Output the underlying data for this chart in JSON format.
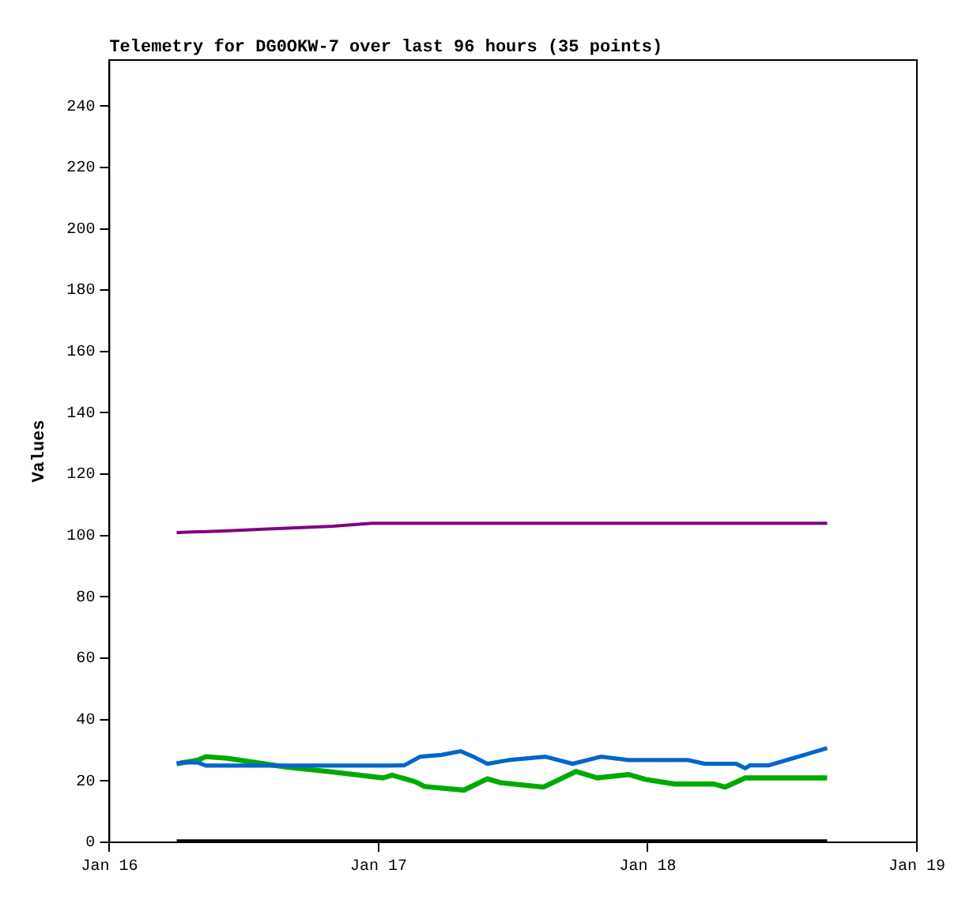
{
  "chart_data": {
    "type": "line",
    "title": "Telemetry for DG0OKW-7 over last 96 hours (35 points)",
    "ylabel": "Values",
    "xlim": [
      "--01-16T00:00",
      "--01-19T00:00"
    ],
    "xticks": [
      {
        "value": "--01-16",
        "label": "Jan 16"
      },
      {
        "value": "--01-17",
        "label": "Jan 17"
      },
      {
        "value": "--01-18",
        "label": "Jan 18"
      },
      {
        "value": "--01-19",
        "label": "Jan 19"
      }
    ],
    "ylim": [
      0,
      255
    ],
    "yticks": [
      0,
      20,
      40,
      60,
      80,
      100,
      120,
      140,
      160,
      180,
      200,
      220,
      240
    ],
    "grid": false,
    "legend": false,
    "marker": "none",
    "line_style": "solid",
    "series": [
      {
        "color": "#800080",
        "x": [
          "--01-16T06:00",
          "--01-16T10:12",
          "--01-16T13:18",
          "--01-16T16:36",
          "--01-16T19:54",
          "--01-16T23:24",
          "--01-18T16:00"
        ],
        "values": [
          101,
          101.5,
          102,
          102.5,
          103,
          104,
          104
        ]
      },
      {
        "color": "#0066cc",
        "x": [
          "--01-16T06:00",
          "--01-16T06:36",
          "--01-16T07:54",
          "--01-16T08:36",
          "--01-17T01:06",
          "--01-17T02:18",
          "--01-17T03:42",
          "--01-17T05:36",
          "--01-17T07:18",
          "--01-17T08:24",
          "--01-17T09:42",
          "--01-17T11:36",
          "--01-17T14:54",
          "--01-17T17:18",
          "--01-17T19:48",
          "--01-17T22:18",
          "--01-18T03:36",
          "--01-18T05:06",
          "--01-18T07:54",
          "--01-18T08:42",
          "--01-18T09:06",
          "--01-18T10:48",
          "--01-18T13:42",
          "--01-18T16:00"
        ],
        "values": [
          25.6,
          26.1,
          26,
          25,
          25,
          25.1,
          27.9,
          28.5,
          29.7,
          28,
          25.6,
          26.8,
          27.9,
          25.6,
          27.9,
          26.8,
          26.8,
          25.6,
          25.6,
          24.1,
          25.1,
          25.1,
          28.2,
          30.7
        ]
      },
      {
        "color": "#00aa00",
        "x": [
          "--01-16T06:00",
          "--01-16T07:54",
          "--01-16T08:36",
          "--01-16T10:30",
          "--01-16T14:18",
          "--01-16T15:48",
          "--01-16T19:30",
          "--01-17T00:24",
          "--01-17T01:12",
          "--01-17T03:18",
          "--01-17T04:06",
          "--01-17T07:36",
          "--01-17T09:42",
          "--01-17T10:54",
          "--01-17T14:42",
          "--01-17T17:36",
          "--01-17T19:30",
          "--01-17T22:18",
          "--01-17T23:48",
          "--01-18T02:24",
          "--01-18T05:54",
          "--01-18T06:54",
          "--01-18T08:42",
          "--01-18T16:00"
        ],
        "values": [
          25.6,
          26.8,
          27.9,
          27.4,
          25.3,
          24.5,
          23.1,
          21,
          21.9,
          19.7,
          18.2,
          17,
          20.7,
          19.4,
          18,
          23.1,
          21,
          22.1,
          20.5,
          19,
          19,
          18,
          21,
          21
        ]
      },
      {
        "color": "#000000",
        "x": [
          "--01-16T06:00",
          "--01-18T16:00"
        ],
        "values": [
          0,
          0
        ]
      }
    ]
  }
}
